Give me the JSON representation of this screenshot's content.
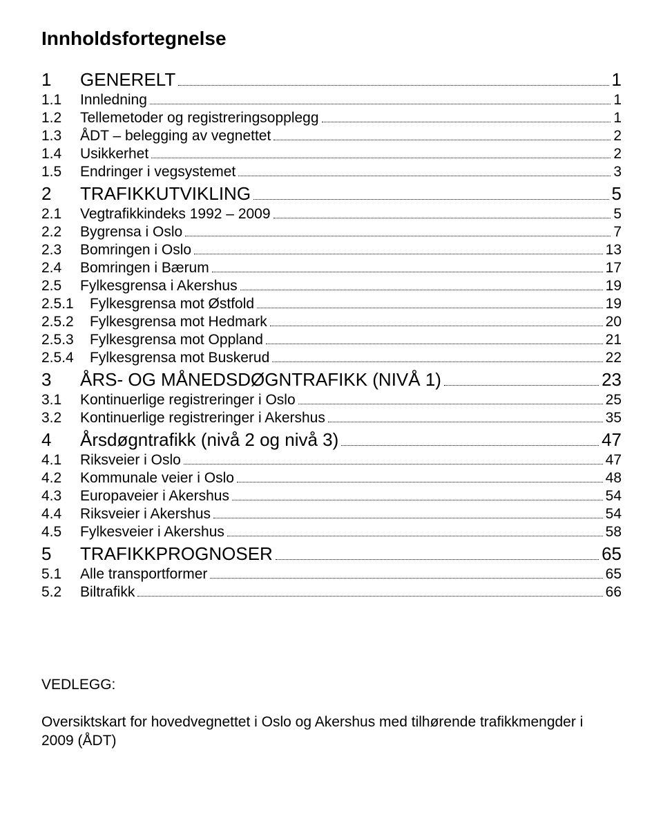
{
  "title": "Innholdsfortegnelse",
  "toc": {
    "s1": {
      "num": "1",
      "label": "GENERELT",
      "page": "1"
    },
    "s1_1": {
      "num": "1.1",
      "label": "Innledning",
      "page": "1"
    },
    "s1_2": {
      "num": "1.2",
      "label": "Tellemetoder og registreringsopplegg",
      "page": "1"
    },
    "s1_3": {
      "num": "1.3",
      "label": "ÅDT – belegging av vegnettet",
      "page": "2"
    },
    "s1_4": {
      "num": "1.4",
      "label": "Usikkerhet",
      "page": "2"
    },
    "s1_5": {
      "num": "1.5",
      "label": "Endringer i vegsystemet",
      "page": "3"
    },
    "s2": {
      "num": "2",
      "label": "TRAFIKKUTVIKLING",
      "page": "5"
    },
    "s2_1": {
      "num": "2.1",
      "label": "Vegtrafikkindeks 1992 – 2009",
      "page": "5"
    },
    "s2_2": {
      "num": "2.2",
      "label": "Bygrensa i Oslo",
      "page": "7"
    },
    "s2_3": {
      "num": "2.3",
      "label": "Bomringen i Oslo",
      "page": "13"
    },
    "s2_4": {
      "num": "2.4",
      "label": "Bomringen i Bærum",
      "page": "17"
    },
    "s2_5": {
      "num": "2.5",
      "label": "Fylkesgrensa i Akershus",
      "page": "19"
    },
    "s2_5_1": {
      "num": "2.5.1",
      "label": "Fylkesgrensa mot Østfold",
      "page": "19"
    },
    "s2_5_2": {
      "num": "2.5.2",
      "label": "Fylkesgrensa mot Hedmark",
      "page": "20"
    },
    "s2_5_3": {
      "num": "2.5.3",
      "label": "Fylkesgrensa mot Oppland",
      "page": "21"
    },
    "s2_5_4": {
      "num": "2.5.4",
      "label": "Fylkesgrensa mot Buskerud",
      "page": "22"
    },
    "s3": {
      "num": "3",
      "label": "ÅRS- OG MÅNEDSDØGNTRAFIKK (NIVÅ 1)",
      "page": "23"
    },
    "s3_1": {
      "num": "3.1",
      "label": "Kontinuerlige registreringer i Oslo",
      "page": "25"
    },
    "s3_2": {
      "num": "3.2",
      "label": "Kontinuerlige registreringer i Akershus",
      "page": "35"
    },
    "s4": {
      "num": "4",
      "label": "Årsdøgntrafikk (nivå 2 og nivå 3)",
      "page": "47"
    },
    "s4_1": {
      "num": "4.1",
      "label": "Riksveier i Oslo",
      "page": "47"
    },
    "s4_2": {
      "num": "4.2",
      "label": "Kommunale veier i Oslo",
      "page": "48"
    },
    "s4_3": {
      "num": "4.3",
      "label": "Europaveier i Akershus",
      "page": "54"
    },
    "s4_4": {
      "num": "4.4",
      "label": "Riksveier i Akershus",
      "page": "54"
    },
    "s4_5": {
      "num": "4.5",
      "label": "Fylkesveier i Akershus",
      "page": "58"
    },
    "s5": {
      "num": "5",
      "label": "TRAFIKKPROGNOSER",
      "page": "65"
    },
    "s5_1": {
      "num": "5.1",
      "label": "Alle transportformer",
      "page": "65"
    },
    "s5_2": {
      "num": "5.2",
      "label": "Biltrafikk",
      "page": "66"
    }
  },
  "appendix": {
    "heading": "VEDLEGG:",
    "body": "Oversiktskart for hovedvegnettet i Oslo og Akershus med tilhørende trafikkmengder i 2009 (ÅDT)"
  },
  "style": {
    "background_color": "#ffffff",
    "text_color": "#000000",
    "font_family": "Arial",
    "title_fontsize": 28,
    "lvl1_fontsize": 26,
    "lvl2_fontsize": 21,
    "lvl3_fontsize": 21,
    "dot_leader_style": "dotted"
  }
}
